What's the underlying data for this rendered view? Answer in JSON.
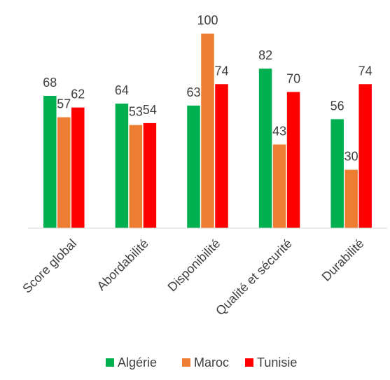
{
  "chart_data": {
    "type": "bar",
    "categories": [
      "Score global",
      "Abordabilité",
      "Disponibilité",
      "Qualité et sécurité",
      "Durabilité"
    ],
    "series": [
      {
        "name": "Algérie",
        "color": "#00B050",
        "values": [
          68,
          64,
          63,
          82,
          56
        ]
      },
      {
        "name": "Maroc",
        "color": "#ED7D31",
        "values": [
          57,
          53,
          100,
          43,
          30
        ]
      },
      {
        "name": "Tunisie",
        "color": "#FF0000",
        "values": [
          62,
          54,
          74,
          70,
          74
        ]
      }
    ],
    "ylim": [
      0,
      100
    ],
    "grid": false,
    "data_labels": true,
    "legend_position": "bottom"
  }
}
